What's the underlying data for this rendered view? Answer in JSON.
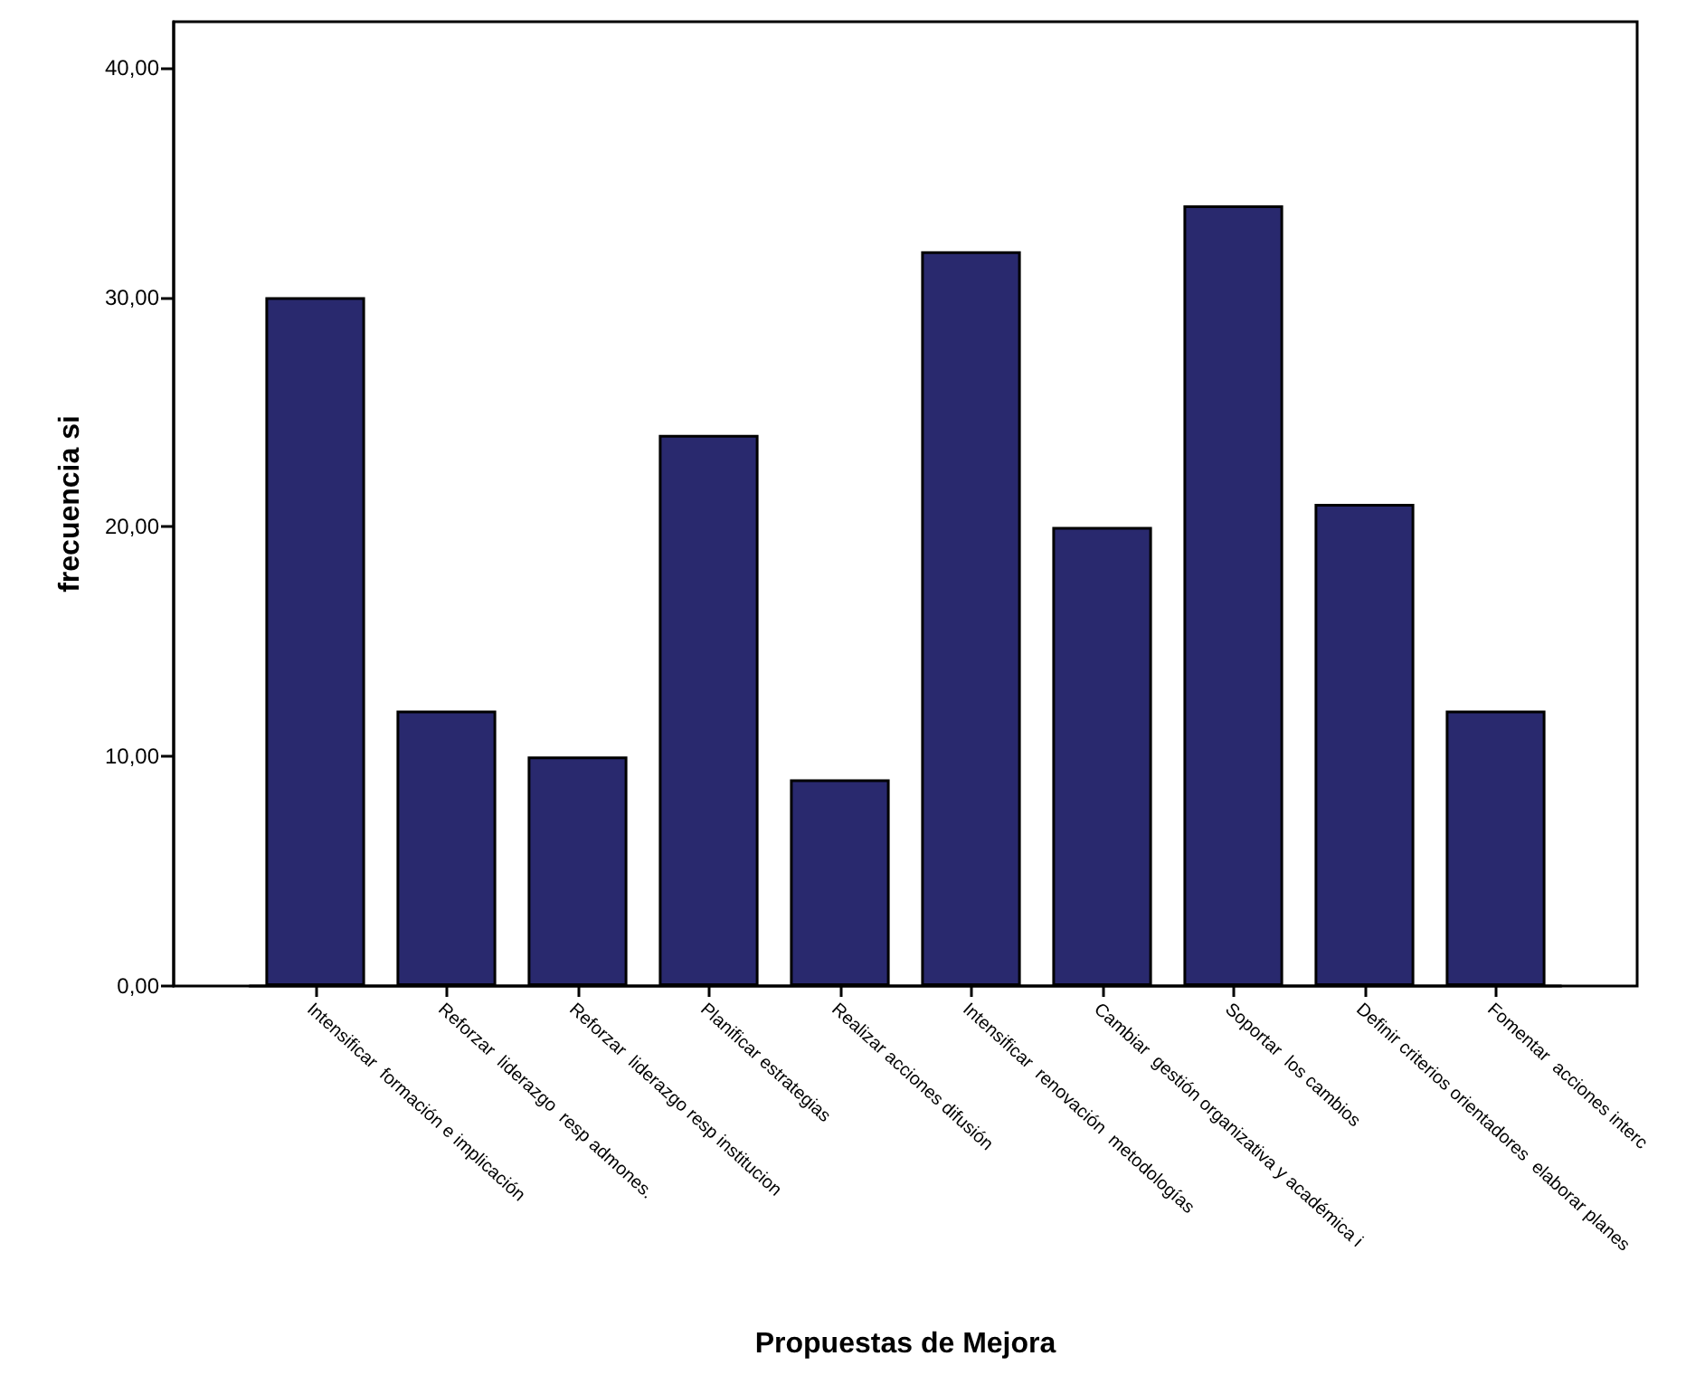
{
  "chart_data": {
    "type": "bar",
    "xlabel": "Propuestas de Mejora",
    "ylabel": "frecuencia si",
    "categories": [
      "Intensificar  formación e implicación",
      "Reforzar  liderazgo  resp admones.",
      "Reforzar  liderazgo resp institucion",
      "Planificar estrategias",
      "Realizar acciones difusión",
      "Intensificar  renovación  metodologías",
      "Cambiar  gestión organizativa y académica i",
      "Soportar  los cambios",
      "Definir criterios orientadores  elaborar planes",
      "Fomentar  acciones interc"
    ],
    "values": [
      30,
      12,
      10,
      24,
      9,
      32,
      20,
      34,
      21,
      12
    ],
    "color": "#29296e",
    "ylim": [
      0,
      42
    ],
    "yticks": [
      {
        "value": 0,
        "label": "0,00"
      },
      {
        "value": 10,
        "label": "10,00"
      },
      {
        "value": 20,
        "label": "20,00"
      },
      {
        "value": 30,
        "label": "30,00"
      },
      {
        "value": 40,
        "label": "40,00"
      }
    ],
    "tick_labels": true
  }
}
